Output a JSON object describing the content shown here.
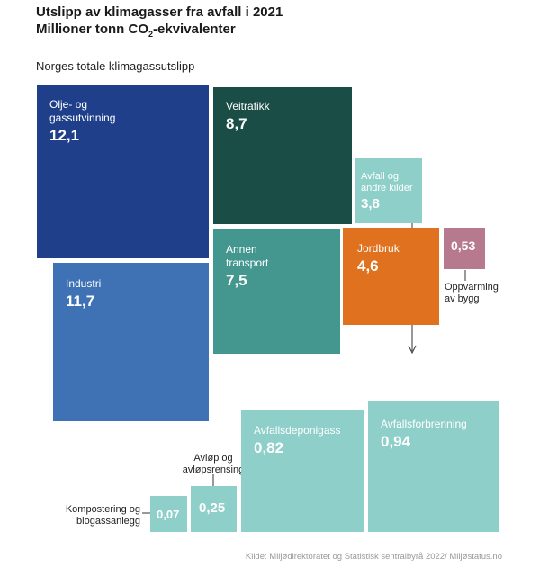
{
  "title": "Utslipp av klimagasser fra avfall i 2021",
  "subtitle": {
    "pre": "Millioner tonn CO",
    "sub": "2",
    "post": "-ekvivalenter"
  },
  "group_label": "Norges totale klimagassutslipp",
  "source": "Kilde: Miljødirektoratet og Statistisk sentralbyrå 2022/ Miljøstatus.no",
  "colors": {
    "olje": "#1f3f8a",
    "industri": "#3e72b5",
    "veitrafikk": "#1a4d45",
    "annen": "#44978f",
    "avfall": "#8fcfc9",
    "jordbruk": "#e0711f",
    "oppvarming": "#b7798d"
  },
  "chart_data": [
    {
      "type": "treemap",
      "title": "Norges totale klimagassutslipp",
      "items": [
        {
          "name": "Olje- og\ngassutvinning",
          "value": "12,1"
        },
        {
          "name": "Industri",
          "value": "11,7"
        },
        {
          "name": "Veitrafikk",
          "value": "8,7"
        },
        {
          "name": "Annen\ntransport",
          "value": "7,5"
        },
        {
          "name": "Avfall og\nandre kilder",
          "value": "3,8"
        },
        {
          "name": "Jordbruk",
          "value": "4,6"
        },
        {
          "name": "Oppvarming\nav bygg",
          "value": "0,53"
        }
      ]
    },
    {
      "type": "bar",
      "title": "",
      "items": [
        {
          "name": "Kompostering og\nbiogassanlegg",
          "value": "0,07"
        },
        {
          "name": "Avløp og\navløpsrensing",
          "value": "0,25"
        },
        {
          "name": "Avfallsdeponigass",
          "value": "0,82"
        },
        {
          "name": "Avfallsforbrenning",
          "value": "0,94"
        }
      ]
    }
  ]
}
